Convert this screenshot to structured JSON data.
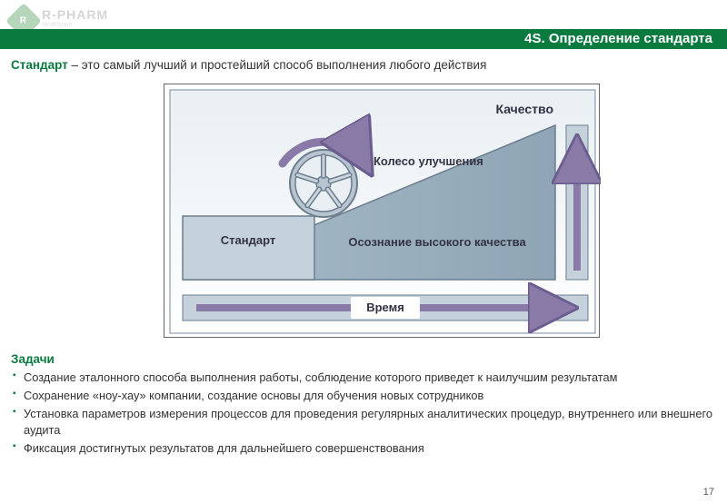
{
  "logo": {
    "company": "R-PHARM",
    "badge": "R",
    "sub1": "Healthcare",
    "sub2": "Company"
  },
  "title": "4S. Определение стандарта",
  "intro": {
    "keyword": "Стандарт",
    "rest": " – это самый лучший и простейший способ выполнения любого действия"
  },
  "diagram": {
    "bg_gradient_top": "#e9eff3",
    "bg_gradient_bottom": "#ffffff",
    "inner_border": "#7a8aa0",
    "triangle_fill": "#a8bcc9",
    "triangle_fill_dark": "#8fa5b5",
    "triangle_stroke": "#6b7d8f",
    "step_fill": "#c5d1db",
    "step_stroke": "#6b7d8f",
    "arrow_color": "#8a7aa8",
    "arrow_stroke": "#6b5d8f",
    "text_color": "#333344",
    "labels": {
      "quality": "Качество",
      "wheel": "Колесо улучшения",
      "standard": "Стандарт",
      "awareness": "Осознание высокого качества",
      "time": "Время"
    },
    "font_bold": "bold",
    "font_lg": 14,
    "font_md": 13
  },
  "tasks": {
    "title": "Задачи",
    "items": [
      "Создание эталонного способа выполнения работы, соблюдение которого приведет к наилучшим результатам",
      "Сохранение «ноу-хау» компании, создание основы для обучения новых сотрудников",
      "Установка параметров измерения процессов для проведения регулярных аналитических процедур, внутреннего или внешнего аудита",
      "Фиксация достигнутых результатов для дальнейшего совершенствования"
    ]
  },
  "page_number": "17"
}
